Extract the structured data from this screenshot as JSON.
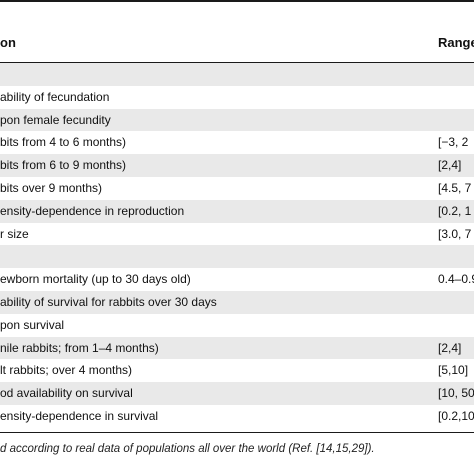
{
  "table": {
    "header": {
      "col1": "on",
      "col2": "Range"
    },
    "rows": [
      {
        "label": "",
        "range": "",
        "shaded": true
      },
      {
        "label": "ability of fecundation",
        "range": "",
        "shaded": false
      },
      {
        "label": "pon female fecundity",
        "range": "",
        "shaded": true
      },
      {
        "label": "bits from 4 to 6 months)",
        "range": "[−3, 2",
        "shaded": false
      },
      {
        "label": "bits from 6 to 9 months)",
        "range": "[2,4]",
        "shaded": true
      },
      {
        "label": "bits over 9 months)",
        "range": "[4.5, 7",
        "shaded": false
      },
      {
        "label": "ensity-dependence in reproduction",
        "range": "[0.2, 1",
        "shaded": true
      },
      {
        "label": "r size",
        "range": "[3.0, 7",
        "shaded": false
      },
      {
        "label": "",
        "range": "",
        "shaded": true
      },
      {
        "label": "ewborn mortality (up to 30 days old)",
        "range": "0.4–0.9",
        "shaded": false
      },
      {
        "label": "ability of survival for rabbits over 30 days",
        "range": "",
        "shaded": true
      },
      {
        "label": "pon survival",
        "range": "",
        "shaded": false
      },
      {
        "label": "nile rabbits; from 1–4 months)",
        "range": "[2,4]",
        "shaded": true
      },
      {
        "label": "lt rabbits; over 4 months)",
        "range": "[5,10]",
        "shaded": false
      },
      {
        "label": "od availability on survival",
        "range": "[10, 50",
        "shaded": true
      },
      {
        "label": "ensity-dependence in survival",
        "range": "[0.2,10",
        "shaded": false
      }
    ],
    "footnote": "d according to real data of populations all over the world (Ref. [14,15,29])."
  }
}
